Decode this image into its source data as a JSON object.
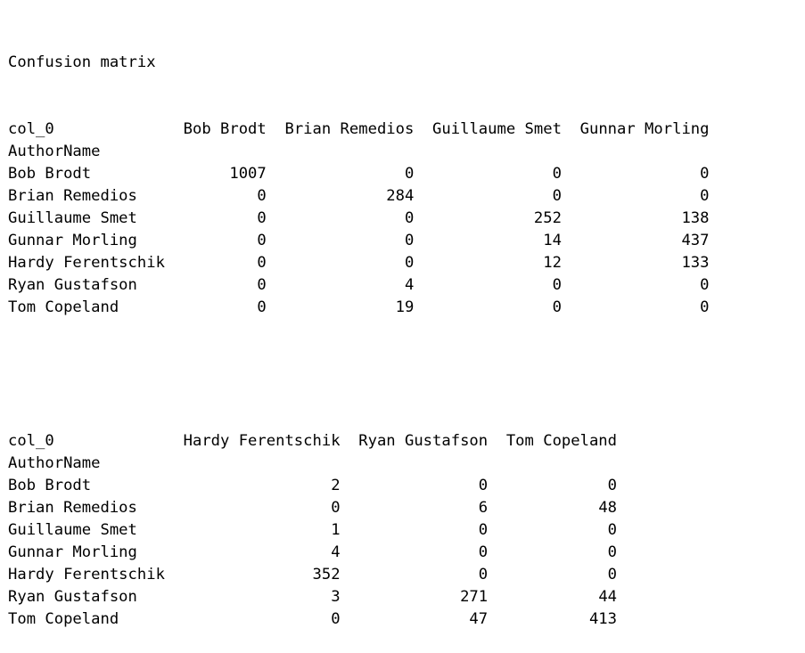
{
  "output": {
    "title": "Confusion matrix",
    "index_name": "AuthorName",
    "column_header_name": "col_0",
    "blocks": [
      {
        "columns": [
          "Bob Brodt",
          "Brian Remedios",
          "Guillaume Smet",
          "Gunnar Morling"
        ],
        "rows": [
          {
            "label": "Bob Brodt",
            "values": [
              1007,
              0,
              0,
              0
            ]
          },
          {
            "label": "Brian Remedios",
            "values": [
              0,
              284,
              0,
              0
            ]
          },
          {
            "label": "Guillaume Smet",
            "values": [
              0,
              0,
              252,
              138
            ]
          },
          {
            "label": "Gunnar Morling",
            "values": [
              0,
              0,
              14,
              437
            ]
          },
          {
            "label": "Hardy Ferentschik",
            "values": [
              0,
              0,
              12,
              133
            ]
          },
          {
            "label": "Ryan Gustafson",
            "values": [
              0,
              4,
              0,
              0
            ]
          },
          {
            "label": "Tom Copeland",
            "values": [
              0,
              19,
              0,
              0
            ]
          }
        ]
      },
      {
        "columns": [
          "Hardy Ferentschik",
          "Ryan Gustafson",
          "Tom Copeland"
        ],
        "rows": [
          {
            "label": "Bob Brodt",
            "values": [
              2,
              0,
              0
            ]
          },
          {
            "label": "Brian Remedios",
            "values": [
              0,
              6,
              48
            ]
          },
          {
            "label": "Guillaume Smet",
            "values": [
              1,
              0,
              0
            ]
          },
          {
            "label": "Gunnar Morling",
            "values": [
              4,
              0,
              0
            ]
          },
          {
            "label": "Hardy Ferentschik",
            "values": [
              352,
              0,
              0
            ]
          },
          {
            "label": "Ryan Gustafson",
            "values": [
              3,
              271,
              44
            ]
          },
          {
            "label": "Tom Copeland",
            "values": [
              0,
              47,
              413
            ]
          }
        ]
      }
    ]
  }
}
